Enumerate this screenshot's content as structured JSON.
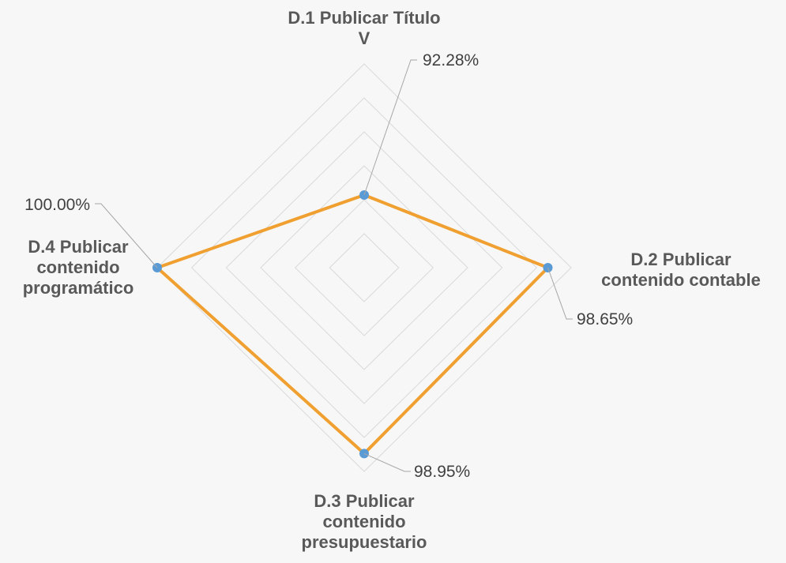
{
  "chart_data": {
    "type": "radar",
    "categories": [
      "D.1 Publicar Título V",
      "D.2 Publicar contenido contable",
      "D.3 Publicar contenido presupuestario",
      "D.4 Publicar contenido programático"
    ],
    "category_lines": [
      [
        "D.1 Publicar Título",
        "V"
      ],
      [
        "D.2 Publicar",
        "contenido contable"
      ],
      [
        "D.3 Publicar",
        "contenido",
        "presupuestario"
      ],
      [
        "D.4 Publicar",
        "contenido",
        "programático"
      ]
    ],
    "series": [
      {
        "values": [
          92.28,
          98.65,
          98.95,
          100.0
        ],
        "value_labels": [
          "92.28%",
          "98.65%",
          "98.95%",
          "100.00%"
        ],
        "line_color": "#f0a030",
        "marker_color": "#5b9bd5"
      }
    ],
    "range": [
      88,
      100
    ],
    "grid_rings": 6,
    "grid": true,
    "legend": false,
    "colors": {
      "background": "#f7f7f7",
      "grid": "#d9d9d9",
      "leader": "#a6a6a6"
    }
  }
}
